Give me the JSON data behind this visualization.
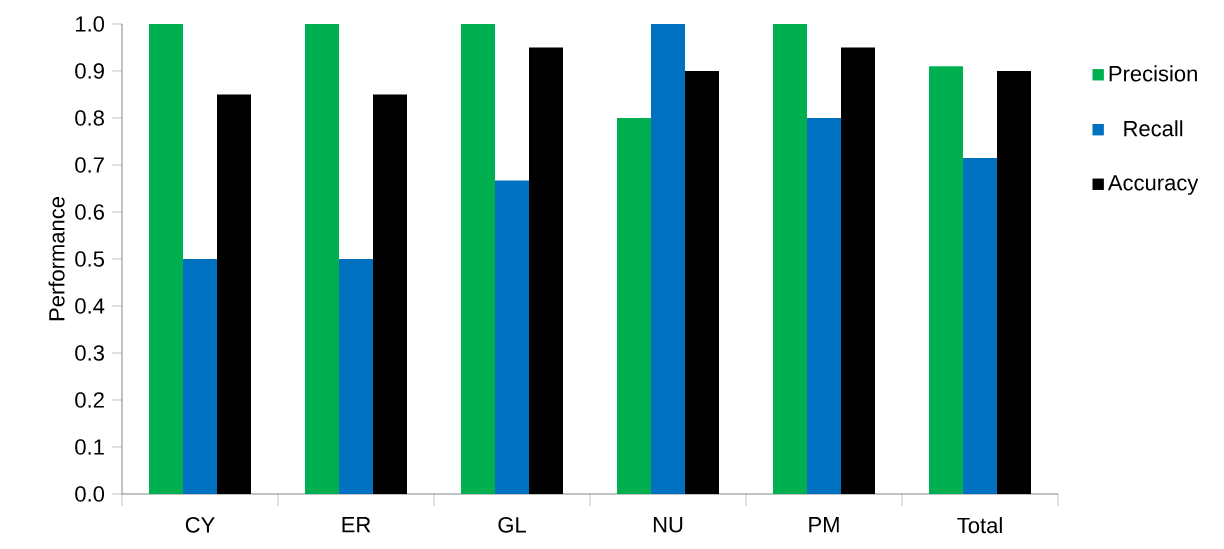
{
  "chart_data": {
    "type": "bar",
    "ylabel": "Performance",
    "categories": [
      "CY",
      "ER",
      "GL",
      "NU",
      "PM",
      "Total"
    ],
    "series": [
      {
        "name": "Precision",
        "color": "#00b050",
        "values": [
          1.0,
          1.0,
          1.0,
          0.8,
          1.0,
          0.91
        ]
      },
      {
        "name": "Recall",
        "color": "#0070c0",
        "values": [
          0.5,
          0.5,
          0.667,
          1.0,
          0.8,
          0.715
        ]
      },
      {
        "name": "Accuracy",
        "color": "#000000",
        "values": [
          0.85,
          0.85,
          0.95,
          0.9,
          0.95,
          0.9
        ]
      }
    ],
    "ylim": [
      0,
      1
    ],
    "yticks": [
      {
        "value": 0,
        "label": "0.0"
      },
      {
        "value": 0.1,
        "label": "0.1"
      },
      {
        "value": 0.2,
        "label": "0.2"
      },
      {
        "value": 0.3,
        "label": "0.3"
      },
      {
        "value": 0.4,
        "label": "0.4"
      },
      {
        "value": 0.5,
        "label": "0.5"
      },
      {
        "value": 0.6,
        "label": "0.6"
      },
      {
        "value": 0.7,
        "label": "0.7"
      },
      {
        "value": 0.8,
        "label": "0.8"
      },
      {
        "value": 0.9,
        "label": "0.9"
      },
      {
        "value": 1.0,
        "label": "1.0"
      }
    ],
    "grid": false,
    "legend": "right"
  }
}
